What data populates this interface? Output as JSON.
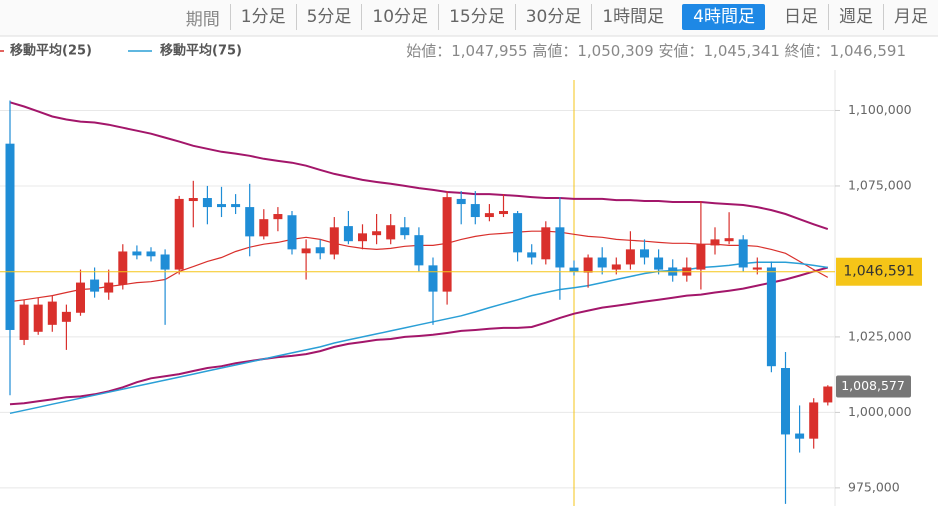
{
  "toolbar": {
    "period_label": "期間",
    "tabs": [
      "1分足",
      "5分足",
      "10分足",
      "15分足",
      "30分足",
      "1時間足",
      "4時間足",
      "日足",
      "週足",
      "月足"
    ],
    "active_tab": 6
  },
  "chart_data": {
    "type": "candlestick",
    "up_color": "#d9302c",
    "down_color": "#1f8dd6",
    "ylim": [
      969000,
      1124000
    ],
    "yticks": [
      {
        "value": 975000,
        "label": "975,000"
      },
      {
        "value": 1000000,
        "label": "1,000,000"
      },
      {
        "value": 1025000,
        "label": "1,025,000"
      },
      {
        "value": 1075000,
        "label": "1,075,000"
      },
      {
        "value": 1100000,
        "label": "1,100,000"
      }
    ],
    "grid": true,
    "info": [
      {
        "label": "始値：",
        "value": "1,047,955"
      },
      {
        "label": "高値：",
        "value": "1,050,309"
      },
      {
        "label": "安値：",
        "value": "1,045,341"
      },
      {
        "label": "終値：",
        "value": "1,046,591"
      }
    ],
    "crosshair_index": 40,
    "last_label": "1,008,577",
    "open": [
      1089000,
      1024000,
      1026700,
      1029000,
      1030000,
      1033000,
      1044000,
      1039700,
      1042300,
      1053300,
      1053300,
      1052300,
      1047300,
      1070000,
      1071000,
      1069000,
      1069000,
      1068000,
      1058300,
      1064000,
      1065300,
      1052700,
      1054700,
      1052300,
      1061700,
      1056700,
      1058700,
      1057300,
      1061300,
      1058700,
      1048700,
      1040000,
      1070700,
      1069000,
      1064700,
      1065700,
      1066000,
      1053000,
      1050700,
      1061300,
      1047955,
      1046300,
      1051300,
      1047300,
      1049000,
      1054000,
      1051300,
      1048000,
      1045300,
      1047300,
      1055300,
      1056700,
      1057300,
      1047300,
      1048000,
      1014700,
      993000,
      991300,
      1003300
    ],
    "high": [
      1103300,
      1037300,
      1038000,
      1038700,
      1035700,
      1047300,
      1048000,
      1047300,
      1055700,
      1055300,
      1054700,
      1054000,
      1071700,
      1076700,
      1075000,
      1074700,
      1072300,
      1075700,
      1067300,
      1068000,
      1066700,
      1057300,
      1057300,
      1064700,
      1066700,
      1062300,
      1065700,
      1065700,
      1064700,
      1061300,
      1051300,
      1073300,
      1073300,
      1073300,
      1069000,
      1072300,
      1066700,
      1055700,
      1063300,
      1071300,
      1050309,
      1052300,
      1054700,
      1051300,
      1060000,
      1057300,
      1054000,
      1050700,
      1051300,
      1070000,
      1061300,
      1066300,
      1058700,
      1051300,
      1050000,
      1020000,
      1002300,
      1004700,
      1009000
    ],
    "low": [
      1005700,
      1022300,
      1025700,
      1026700,
      1020700,
      1032000,
      1038000,
      1037300,
      1040700,
      1050700,
      1050000,
      1029000,
      1045700,
      1061300,
      1062300,
      1064700,
      1065700,
      1051700,
      1057300,
      1060000,
      1052300,
      1044000,
      1050700,
      1050700,
      1055700,
      1054000,
      1055700,
      1055700,
      1057300,
      1046700,
      1029000,
      1035700,
      1062300,
      1062300,
      1063300,
      1064700,
      1050000,
      1049000,
      1049000,
      1037300,
      1045341,
      1041300,
      1045700,
      1045700,
      1047300,
      1049000,
      1045700,
      1043300,
      1043300,
      1040700,
      1052300,
      1055700,
      1046700,
      1045700,
      1013300,
      969700,
      986700,
      988000,
      1002300
    ],
    "close": [
      1027300,
      1035700,
      1035700,
      1036700,
      1033300,
      1043000,
      1040000,
      1043000,
      1053300,
      1052000,
      1051700,
      1047300,
      1070700,
      1071000,
      1068000,
      1068000,
      1068000,
      1058300,
      1064000,
      1065700,
      1054000,
      1054300,
      1052700,
      1061300,
      1056700,
      1059300,
      1060000,
      1062000,
      1058700,
      1048700,
      1040000,
      1071300,
      1069000,
      1064700,
      1066000,
      1066700,
      1053000,
      1051300,
      1061300,
      1048000,
      1046591,
      1051300,
      1048000,
      1049000,
      1054000,
      1051300,
      1047300,
      1045300,
      1048000,
      1055700,
      1057300,
      1057700,
      1048000,
      1048000,
      1015300,
      992700,
      991300,
      1003300,
      1008577
    ],
    "series": [
      {
        "name": "移動平均(25)",
        "color": "#d9302c",
        "values": [
          1036700,
          1037300,
          1038000,
          1038700,
          1039700,
          1040700,
          1041000,
          1041700,
          1042300,
          1043000,
          1043300,
          1044000,
          1046700,
          1048300,
          1050000,
          1051300,
          1053300,
          1054700,
          1055700,
          1056300,
          1057300,
          1058000,
          1057300,
          1056000,
          1055000,
          1054300,
          1054000,
          1054300,
          1055000,
          1055300,
          1055300,
          1056000,
          1057300,
          1058300,
          1059000,
          1059300,
          1059700,
          1060000,
          1060000,
          1059700,
          1059000,
          1058300,
          1058000,
          1057300,
          1057000,
          1056700,
          1056300,
          1056000,
          1056000,
          1055700,
          1055700,
          1055300,
          1055300,
          1055000,
          1054000,
          1052700,
          1050000,
          1047300,
          1044700
        ]
      },
      {
        "name": "移動平均(75)",
        "color": "#2a9fd6",
        "values": [
          999700,
          1000700,
          1001700,
          1002700,
          1003700,
          1004700,
          1005700,
          1006700,
          1007700,
          1008700,
          1009700,
          1010700,
          1011700,
          1012700,
          1013700,
          1014700,
          1015700,
          1016700,
          1017700,
          1018700,
          1019700,
          1020700,
          1021700,
          1023000,
          1024000,
          1025000,
          1026000,
          1027000,
          1028000,
          1029000,
          1030000,
          1031000,
          1032000,
          1033300,
          1034700,
          1036000,
          1037300,
          1038700,
          1039700,
          1040700,
          1041300,
          1042000,
          1043000,
          1044000,
          1045000,
          1046000,
          1046700,
          1047000,
          1047300,
          1048000,
          1048300,
          1048700,
          1049300,
          1049700,
          1049700,
          1049700,
          1049300,
          1048700,
          1048000
        ]
      }
    ],
    "bands": [
      {
        "color": "#a3166a",
        "values": [
          1102700,
          1101300,
          1099700,
          1098000,
          1097000,
          1096300,
          1096000,
          1095300,
          1094300,
          1093300,
          1092300,
          1091000,
          1089700,
          1088300,
          1087300,
          1086300,
          1085700,
          1085000,
          1084000,
          1083300,
          1082700,
          1081700,
          1080300,
          1079000,
          1078000,
          1077000,
          1076300,
          1075700,
          1075000,
          1074300,
          1073700,
          1073000,
          1072700,
          1072300,
          1072300,
          1072000,
          1071700,
          1071300,
          1071000,
          1071000,
          1070700,
          1070700,
          1070700,
          1070300,
          1070300,
          1070000,
          1070000,
          1069700,
          1069700,
          1069700,
          1069300,
          1069000,
          1068700,
          1068000,
          1067000,
          1065700,
          1064000,
          1062300,
          1060700
        ]
      },
      {
        "color": "#a3166a",
        "values": [
          1002700,
          1003000,
          1003700,
          1004300,
          1005000,
          1005300,
          1006000,
          1007000,
          1008300,
          1010000,
          1011300,
          1012000,
          1012700,
          1013700,
          1014700,
          1015300,
          1016300,
          1017000,
          1017700,
          1018300,
          1018700,
          1019300,
          1020300,
          1021700,
          1022700,
          1023300,
          1024000,
          1024300,
          1025000,
          1025300,
          1025700,
          1026300,
          1027000,
          1027300,
          1027700,
          1028000,
          1028000,
          1028300,
          1029700,
          1031300,
          1032700,
          1033700,
          1034700,
          1035300,
          1036000,
          1036700,
          1037300,
          1038000,
          1038700,
          1039000,
          1039700,
          1040300,
          1041000,
          1042000,
          1043000,
          1044000,
          1045300,
          1046700,
          1048000
        ]
      }
    ]
  }
}
